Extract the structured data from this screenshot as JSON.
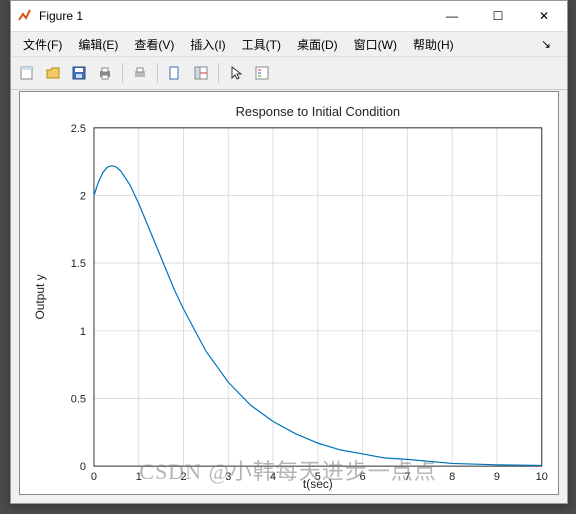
{
  "window": {
    "title": "Figure 1",
    "sysbuttons": {
      "min": "—",
      "max": "☐",
      "close": "✕"
    }
  },
  "menu": {
    "items": [
      "文件(F)",
      "编辑(E)",
      "查看(V)",
      "插入(I)",
      "工具(T)",
      "桌面(D)",
      "窗口(W)",
      "帮助(H)"
    ],
    "dropglyph": "↘"
  },
  "chart": {
    "type": "line",
    "title": "Response to Initial Condition",
    "xlabel": "t(sec)",
    "ylabel": "Output y",
    "line_color": "#0072bd",
    "bg": "#ffffff",
    "grid_color": "#dddddd",
    "axis_color": "#333333",
    "tick_fontsize": 11,
    "title_fontsize": 13,
    "label_fontsize": 12,
    "xlim": [
      0,
      10
    ],
    "ylim": [
      0,
      2.5
    ],
    "xticks": [
      0,
      1,
      2,
      3,
      4,
      5,
      6,
      7,
      8,
      9,
      10
    ],
    "yticks": [
      0,
      0.5,
      1,
      1.5,
      2,
      2.5
    ],
    "series": {
      "x": [
        0,
        0.1,
        0.2,
        0.3,
        0.4,
        0.5,
        0.6,
        0.8,
        1.0,
        1.2,
        1.5,
        1.8,
        2.0,
        2.5,
        3.0,
        3.5,
        4.0,
        4.5,
        5.0,
        5.5,
        6.0,
        6.5,
        7.0,
        8.0,
        9.0,
        10.0
      ],
      "y": [
        2.0,
        2.1,
        2.17,
        2.21,
        2.22,
        2.21,
        2.18,
        2.08,
        1.94,
        1.78,
        1.54,
        1.3,
        1.16,
        0.85,
        0.62,
        0.45,
        0.33,
        0.24,
        0.17,
        0.12,
        0.09,
        0.06,
        0.05,
        0.02,
        0.01,
        0.005
      ]
    }
  },
  "watermark": "CSDN @小韩每天进步一点点"
}
